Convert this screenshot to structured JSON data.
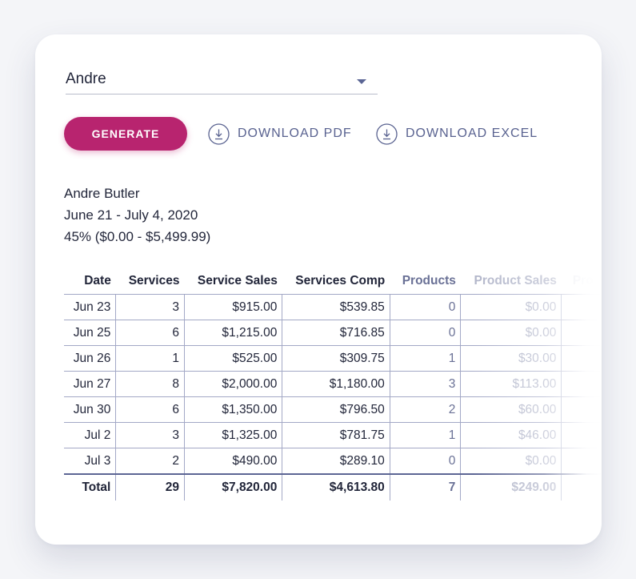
{
  "employee_select": {
    "value": "Andre"
  },
  "actions": {
    "generate": "GENERATE",
    "download_pdf": "DOWNLOAD PDF",
    "download_excel": "DOWNLOAD EXCEL"
  },
  "report": {
    "name": "Andre Butler",
    "date_range": "June 21 - July 4, 2020",
    "commission": "45% ($0.00 - $5,499.99)"
  },
  "table": {
    "headers": [
      "Date",
      "Services",
      "Service Sales",
      "Services Comp",
      "Products",
      "Product Sales",
      "Pro"
    ],
    "rows": [
      [
        "Jun 23",
        "3",
        "$915.00",
        "$539.85",
        "0",
        "$0.00",
        ""
      ],
      [
        "Jun 25",
        "6",
        "$1,215.00",
        "$716.85",
        "0",
        "$0.00",
        ""
      ],
      [
        "Jun 26",
        "1",
        "$525.00",
        "$309.75",
        "1",
        "$30.00",
        ""
      ],
      [
        "Jun 27",
        "8",
        "$2,000.00",
        "$1,180.00",
        "3",
        "$113.00",
        ""
      ],
      [
        "Jun 30",
        "6",
        "$1,350.00",
        "$796.50",
        "2",
        "$60.00",
        ""
      ],
      [
        "Jul 2",
        "3",
        "$1,325.00",
        "$781.75",
        "1",
        "$46.00",
        ""
      ],
      [
        "Jul 3",
        "2",
        "$490.00",
        "$289.10",
        "0",
        "$0.00",
        ""
      ]
    ],
    "total": [
      "Total",
      "29",
      "$7,820.00",
      "$4,613.80",
      "7",
      "$249.00",
      ""
    ]
  },
  "colors": {
    "accent": "#b8246f",
    "secondary": "#596290",
    "border": "#a3a8c6"
  },
  "icons": {
    "select": "chevron-down-icon",
    "download": "download-icon"
  }
}
